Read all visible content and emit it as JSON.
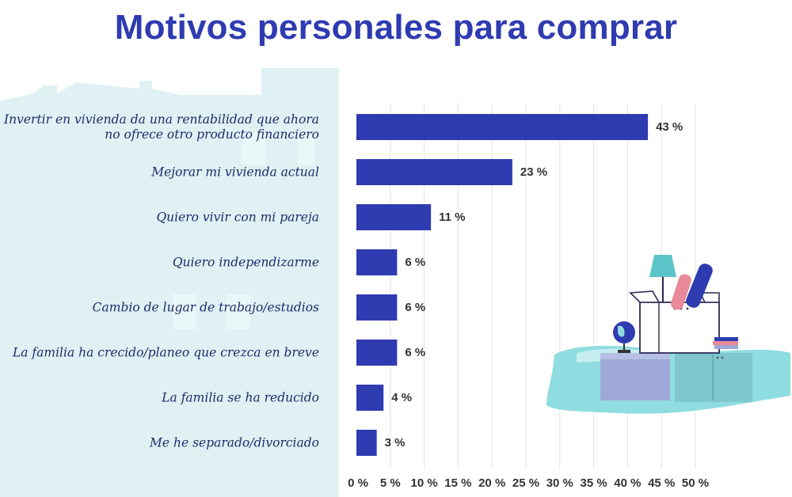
{
  "title": "Motivos personales para comprar",
  "chart_data": {
    "type": "bar",
    "orientation": "horizontal",
    "title": "Motivos personales para comprar",
    "categories": [
      "Invertir en vivienda da una rentabilidad que ahora no ofrece otro producto financiero",
      "Mejorar mi vivienda actual",
      "Quiero vivir con mi pareja",
      "Quiero independizarme",
      "Cambio de lugar de trabajo/estudios",
      "La familia ha crecido/planeo que crezca en breve",
      "La familia se ha reducido",
      "Me he separado/divorciado"
    ],
    "category_lines": [
      [
        "Invertir en vivienda da una rentabilidad que ahora",
        "no ofrece otro producto financiero"
      ],
      [
        "Mejorar mi vivienda actual"
      ],
      [
        "Quiero vivir con mi pareja"
      ],
      [
        "Quiero independizarme"
      ],
      [
        "Cambio de lugar de trabajo/estudios"
      ],
      [
        "La familia ha crecido/planeo que crezca en breve"
      ],
      [
        "La familia se ha reducido"
      ],
      [
        "Me he separado/divorciado"
      ]
    ],
    "values": [
      43,
      23,
      11,
      6,
      6,
      6,
      4,
      3
    ],
    "value_labels": [
      "43 %",
      "23 %",
      "11 %",
      "6 %",
      "6 %",
      "6 %",
      "4 %",
      "3 %"
    ],
    "xlim": [
      0,
      50
    ],
    "x_ticks": [
      "0 %",
      "5 %",
      "10 %",
      "15 %",
      "20 %",
      "25 %",
      "30 %",
      "35 %",
      "40 %",
      "45 %",
      "50 %"
    ],
    "grid": true,
    "legend": "none",
    "colors": {
      "bar": "#2f3bb0",
      "title": "#2f3bb0",
      "label": "#1f2a6b",
      "panel": "#dff1f3",
      "gridline": "#e3e3e3"
    }
  },
  "illustration": {
    "name": "moving-box-illustration"
  }
}
